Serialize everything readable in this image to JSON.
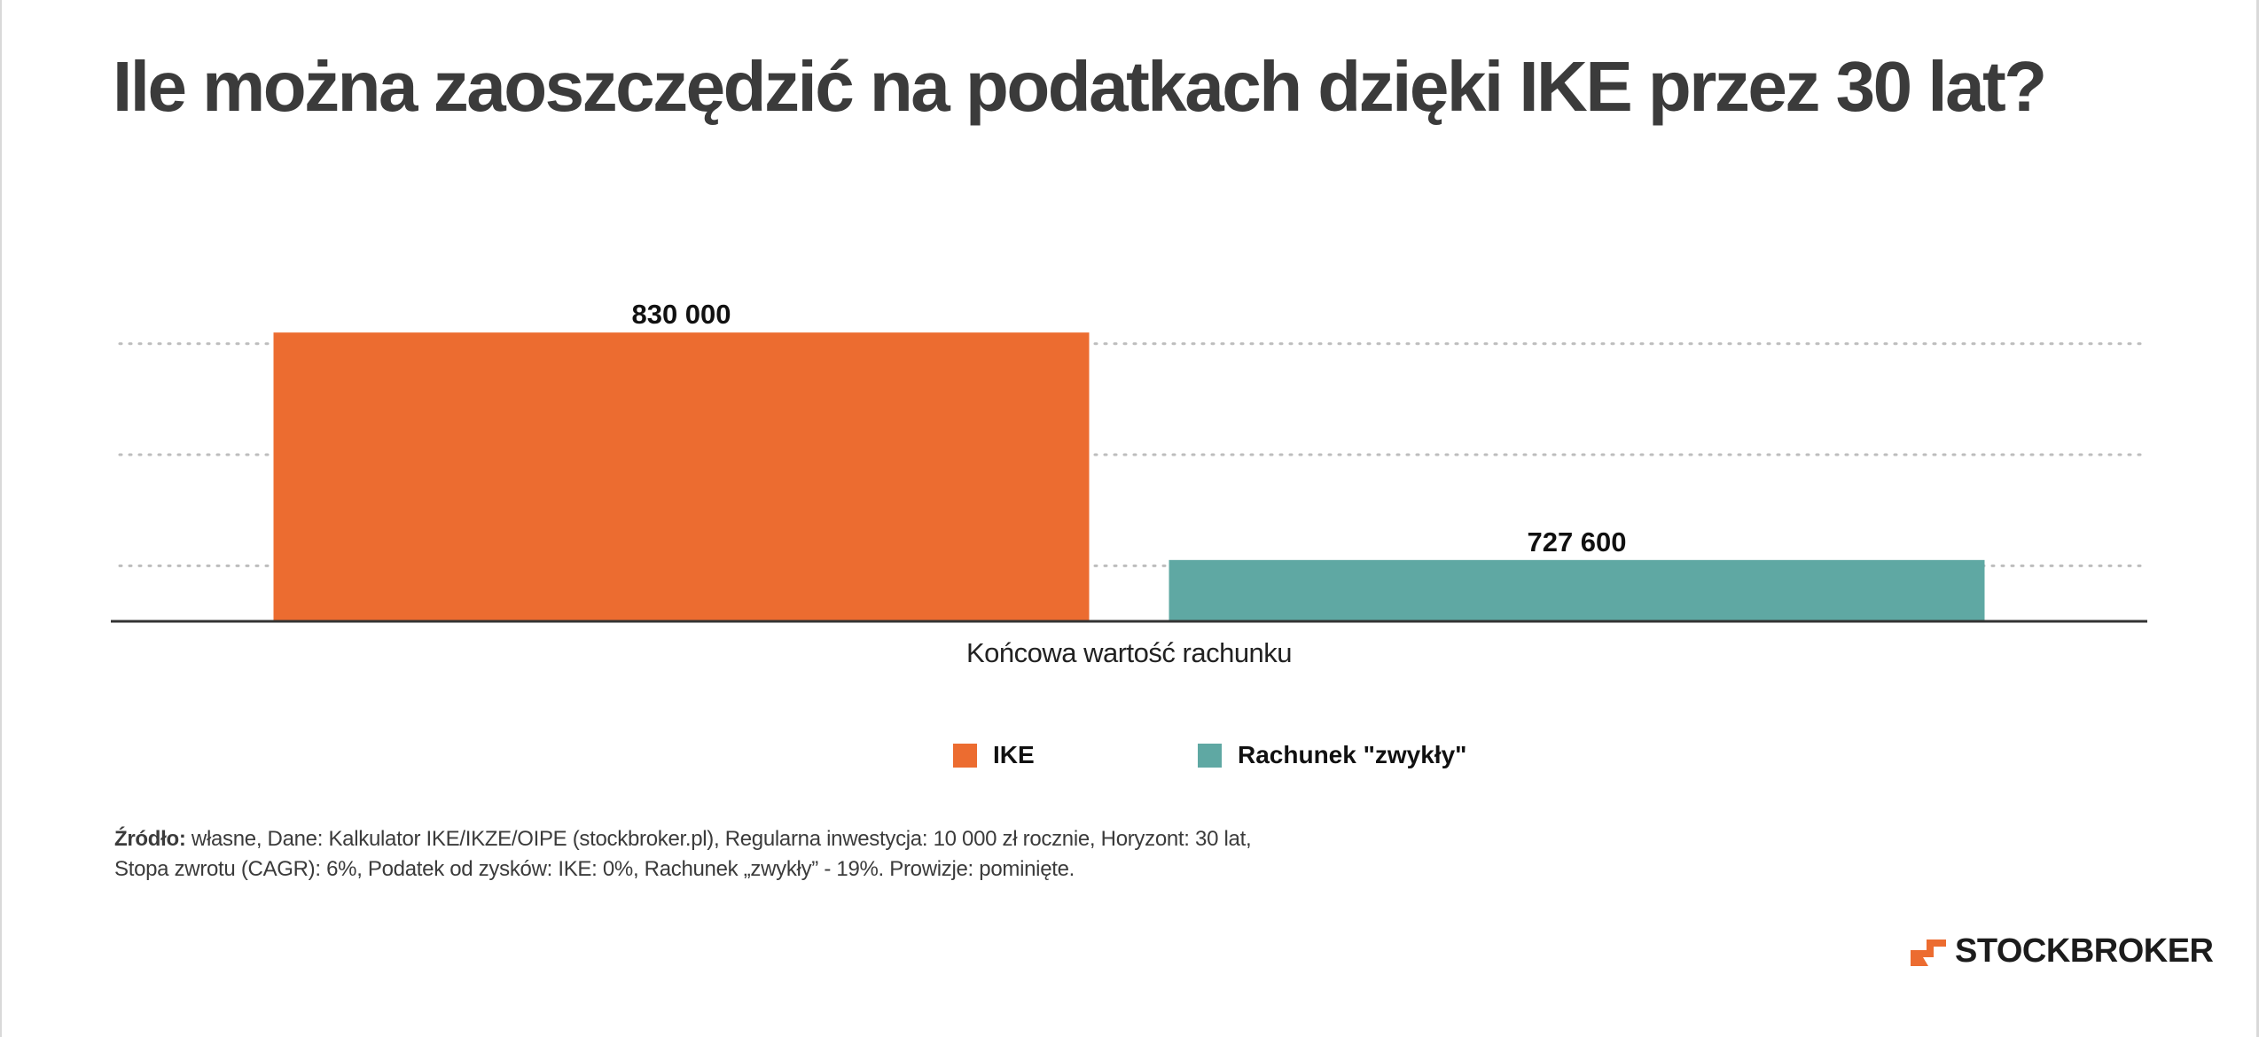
{
  "title": "Ile można zaoszczędzić na podatkach dzięki IKE przez 30 lat?",
  "colors": {
    "ike": "#ec6c30",
    "regular": "#5fa8a3",
    "text": "#3b3b3b",
    "grid": "#bdbdbd",
    "axis": "#333333"
  },
  "chart_data": {
    "type": "bar",
    "title": "Ile można zaoszczędzić na podatkach dzięki IKE przez 30 lat?",
    "categories": [
      "Końcowa wartość rachunku"
    ],
    "series": [
      {
        "name": "IKE",
        "values": [
          830000
        ],
        "color": "#ec6c30",
        "label": "830 000"
      },
      {
        "name": "Rachunek \"zwykły\"",
        "values": [
          727600
        ],
        "color": "#5fa8a3",
        "label": "727 600"
      }
    ],
    "ylim": [
      700000,
      860000
    ],
    "gridlines": [
      725000,
      775000,
      825000,
      875000
    ],
    "grid": true,
    "legend": "bottom"
  },
  "source": {
    "label": "Źródło:",
    "text": " własne, Dane: Kalkulator IKE/IKZE/OIPE (stockbroker.pl), Regularna inwestycja: 10 000 zł rocznie, Horyzont: 30 lat, Stopa zwrotu (CAGR): 6%, Podatek od zysków: IKE: 0%, Rachunek „zwykły” - 19%. Prowizje: pominięte."
  },
  "brand": {
    "name": "STOCKBROKER",
    "logo_icon": "stockbroker-logo-icon"
  }
}
